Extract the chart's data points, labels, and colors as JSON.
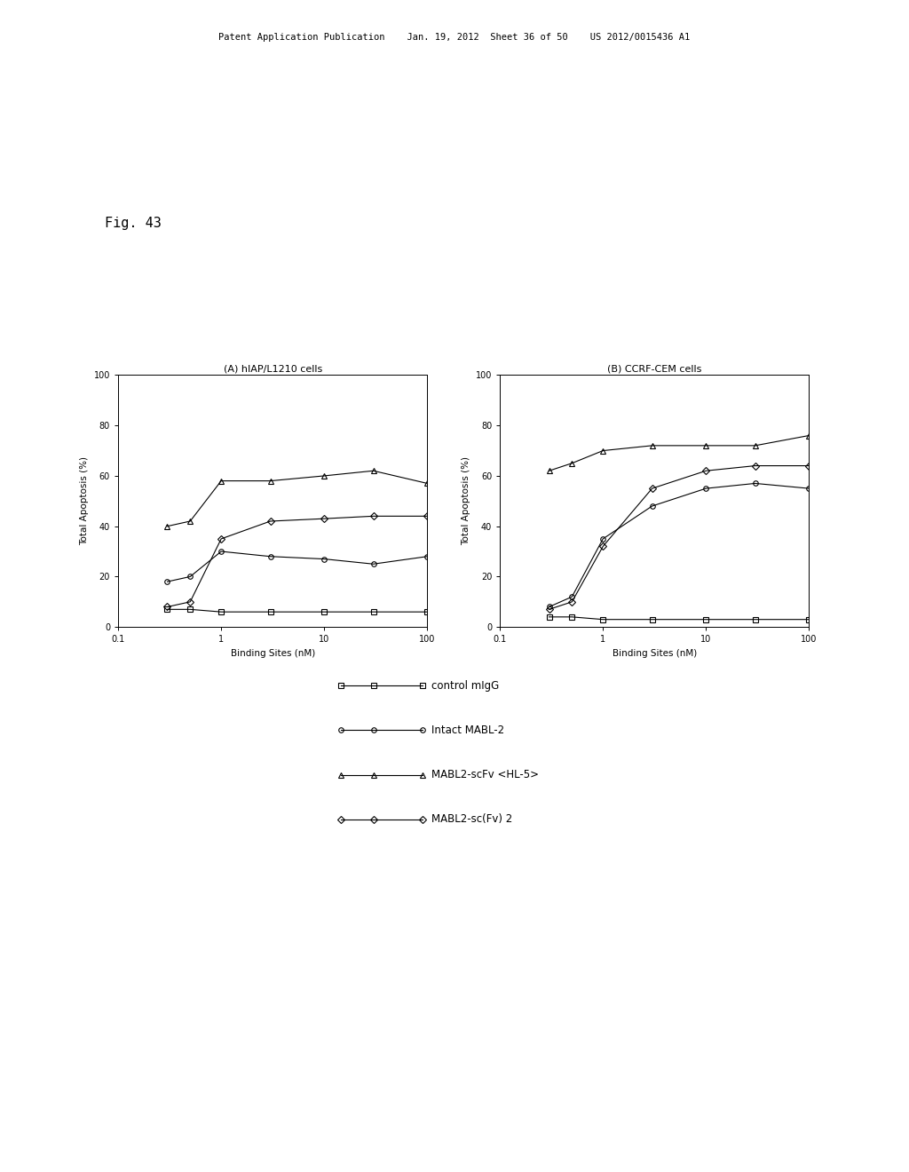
{
  "fig_label": "Fig. 43",
  "title_A": "(A) hIAP/L1210 cells",
  "title_B": "(B) CCRF-CEM cells",
  "xlabel": "Binding Sites (nM)",
  "ylabel": "Total Apoptosis (%)",
  "xlim": [
    0.1,
    100
  ],
  "ylim": [
    0,
    100
  ],
  "xticks": [
    0.1,
    1,
    10,
    100
  ],
  "xtick_labels": [
    "0.1",
    "1",
    "10",
    "100"
  ],
  "yticks": [
    0,
    20,
    40,
    60,
    80,
    100
  ],
  "series": [
    {
      "label": "control mIgG",
      "marker": "s",
      "A_x": [
        0.3,
        0.5,
        1,
        3,
        10,
        30,
        100
      ],
      "A_y": [
        7,
        7,
        6,
        6,
        6,
        6,
        6
      ],
      "B_x": [
        0.3,
        0.5,
        1,
        3,
        10,
        30,
        100
      ],
      "B_y": [
        4,
        4,
        3,
        3,
        3,
        3,
        3
      ]
    },
    {
      "label": "Intact MABL-2",
      "marker": "o",
      "A_x": [
        0.3,
        0.5,
        1,
        3,
        10,
        30,
        100
      ],
      "A_y": [
        18,
        20,
        30,
        28,
        27,
        25,
        28
      ],
      "B_x": [
        0.3,
        0.5,
        1,
        3,
        10,
        30,
        100
      ],
      "B_y": [
        8,
        12,
        35,
        48,
        55,
        57,
        55
      ]
    },
    {
      "label": "MABL2-scFv <HL-5>",
      "marker": "^",
      "A_x": [
        0.3,
        0.5,
        1,
        3,
        10,
        30,
        100
      ],
      "A_y": [
        40,
        42,
        58,
        58,
        60,
        62,
        57
      ],
      "B_x": [
        0.3,
        0.5,
        1,
        3,
        10,
        30,
        100
      ],
      "B_y": [
        62,
        65,
        70,
        72,
        72,
        72,
        76
      ]
    },
    {
      "label": "MABL2-sc(Fv) 2",
      "marker": "D",
      "A_x": [
        0.3,
        0.5,
        1,
        3,
        10,
        30,
        100
      ],
      "A_y": [
        8,
        10,
        35,
        42,
        43,
        44,
        44
      ],
      "B_x": [
        0.3,
        0.5,
        1,
        3,
        10,
        30,
        100
      ],
      "B_y": [
        7,
        10,
        32,
        55,
        62,
        64,
        64
      ]
    }
  ],
  "legend_labels": [
    "control mIgG",
    "Intact MABL-2",
    "MABL2-scFv <HL-5>",
    "MABL2-sc(Fv) 2"
  ],
  "legend_markers": [
    "s",
    "o",
    "^",
    "D"
  ],
  "bg_color": "#ffffff",
  "header_text": "Patent Application Publication    Jan. 19, 2012  Sheet 36 of 50    US 2012/0015436 A1"
}
